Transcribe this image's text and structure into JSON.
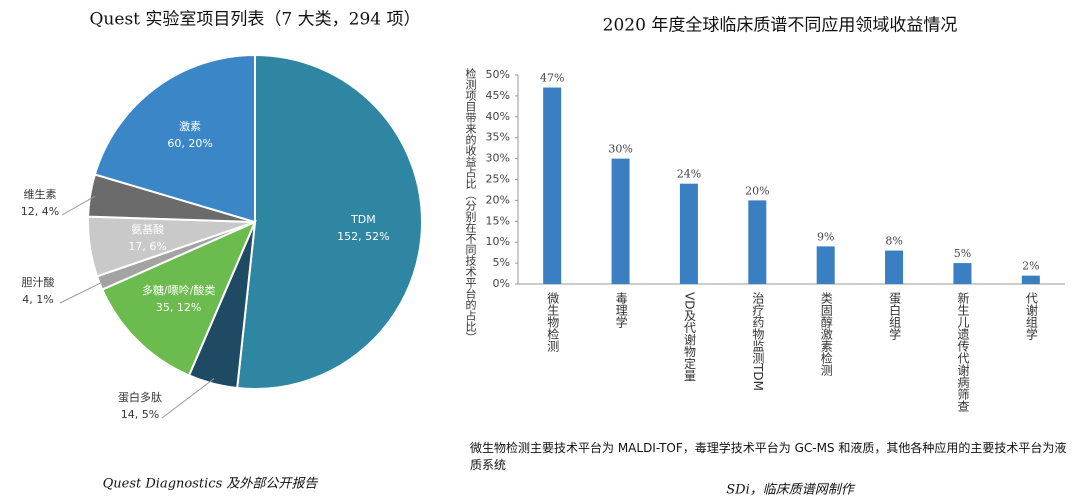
{
  "chart_data": [
    {
      "type": "pie",
      "title": "Quest 实验室项目列表（7 大类，294 项）",
      "categories": [
        "TDM",
        "蛋白多肽",
        "多糖/嘌呤/酸类",
        "胆汁酸",
        "氨基酸",
        "维生素",
        "激素"
      ],
      "values": [
        152,
        14,
        35,
        4,
        17,
        12,
        60
      ],
      "value_labels": [
        "152, 52%",
        "14, 5%",
        "35, 12%",
        "4, 1%",
        "17, 6%",
        "12, 4%",
        "60, 20%"
      ],
      "colors": [
        "#2f86a2",
        "#1f4a63",
        "#6cbb4e",
        "#a3a3a3",
        "#c9c9c9",
        "#6b6b6b",
        "#3a86c6"
      ],
      "source": "Quest Diagnostics 及外部公开报告"
    },
    {
      "type": "bar",
      "title": "2020 年度全球临床质谱不同应用领域收益情况",
      "y_label": "检测项目带来的收益占比（分别在不同技术平台的占比）",
      "categories": [
        "微生物检测",
        "毒理学",
        "VD及代谢物定量",
        "治疗药物监测TDM",
        "类固醇激素检测",
        "蛋白组学",
        "新生儿遗传代谢病筛查",
        "代谢组学"
      ],
      "values": [
        47,
        30,
        24,
        20,
        9,
        8,
        5,
        2
      ],
      "value_labels": [
        "47%",
        "30%",
        "24%",
        "20%",
        "9%",
        "8%",
        "5%",
        "2%"
      ],
      "color": "#3a7fc1",
      "ylim": [
        0,
        50
      ],
      "yticks": [
        {
          "value": 0,
          "label": "0%"
        },
        {
          "value": 5,
          "label": "5%"
        },
        {
          "value": 10,
          "label": "10%"
        },
        {
          "value": 15,
          "label": "15%"
        },
        {
          "value": 20,
          "label": "20%"
        },
        {
          "value": 25,
          "label": "25%"
        },
        {
          "value": 30,
          "label": "30%"
        },
        {
          "value": 35,
          "label": "35%"
        },
        {
          "value": 40,
          "label": "40%"
        },
        {
          "value": 45,
          "label": "45%"
        },
        {
          "value": 50,
          "label": "50%"
        }
      ],
      "note": "微生物检测主要技术平台为 MALDI-TOF，毒理学技术平台为 GC-MS 和液质，其他各种应用的主要技术平台为液质系统",
      "source": "SDi，临床质谱网制作"
    }
  ]
}
